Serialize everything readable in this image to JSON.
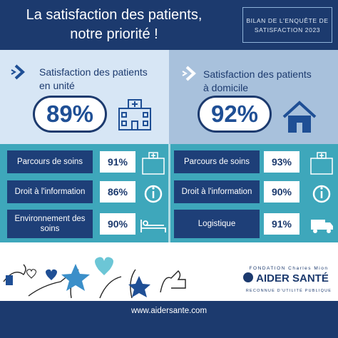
{
  "header": {
    "title": [
      "La satisfaction des patients,",
      "notre priorité !"
    ],
    "badge": [
      "BILAN DE L'ENQUÊTE DE",
      "SATISFACTION 2023"
    ]
  },
  "panels": [
    {
      "title": [
        "Satisfaction des patients",
        "en unité"
      ],
      "score": "89%",
      "rows": [
        {
          "label": "Parcours de soins",
          "value": "91%"
        },
        {
          "label": "Droit à l'information",
          "value": "86%"
        },
        {
          "label": "Environnement des soins",
          "value": "90%"
        }
      ]
    },
    {
      "title": [
        "Satisfaction des patients",
        "à domicile"
      ],
      "score": "92%",
      "rows": [
        {
          "label": "Parcours de soins",
          "value": "93%"
        },
        {
          "label": "Droit à l'information",
          "value": "90%"
        },
        {
          "label": "Logistique",
          "value": "91%"
        }
      ]
    }
  ],
  "logo": {
    "foundation": "FONDATION Charles Mion",
    "name": "AIDER SANTÉ",
    "tagline": "RECONNUE D'UTILITÉ PUBLIQUE"
  },
  "footer": {
    "url": "www.aidersante.com"
  }
}
